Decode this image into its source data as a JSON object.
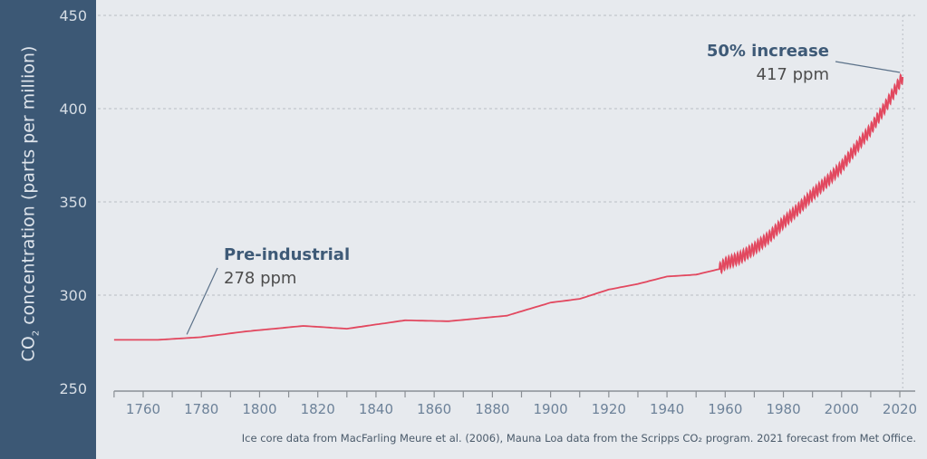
{
  "chart_data": {
    "type": "line",
    "ylabel_pre": "CO",
    "ylabel_sub": "2",
    "ylabel_post": " concentration (parts per million)",
    "ylim": [
      250,
      450
    ],
    "yticks": [
      "250",
      "300",
      "350",
      "400",
      "450"
    ],
    "xlim": [
      1750,
      2021
    ],
    "xticks": [
      "1760",
      "1780",
      "1800",
      "1820",
      "1840",
      "1860",
      "1880",
      "1900",
      "1920",
      "1940",
      "1960",
      "1980",
      "2000",
      "2020"
    ],
    "grid": "horizontal dashed",
    "series": [
      {
        "name": "CO2 concentration",
        "color": "#e2485f",
        "x": [
          1750,
          1765,
          1780,
          1795,
          1815,
          1830,
          1850,
          1865,
          1885,
          1900,
          1910,
          1920,
          1930,
          1940,
          1950,
          1958,
          1960,
          1965,
          1970,
          1975,
          1980,
          1985,
          1990,
          1995,
          2000,
          2005,
          2010,
          2015,
          2021
        ],
        "y": [
          276,
          276,
          277.5,
          280.5,
          283.5,
          282,
          286.5,
          286,
          289,
          296,
          298,
          303,
          306,
          310,
          311,
          314,
          317,
          320,
          325,
          331,
          339,
          346,
          354,
          361,
          369,
          379,
          389,
          401,
          417
        ],
        "seasonal_amplitude_from_1958": 3
      }
    ],
    "annotations": [
      {
        "title": "Pre-industrial",
        "value": "278 ppm",
        "x": 1775,
        "y": 278
      },
      {
        "title": "50% increase",
        "value": "417 ppm",
        "x": 2021,
        "y": 417
      }
    ],
    "source": "Ice core data from MacFarling Meure et al. (2006), Mauna Loa data from the Scripps CO₂ program. 2021 forecast from Met Office."
  }
}
